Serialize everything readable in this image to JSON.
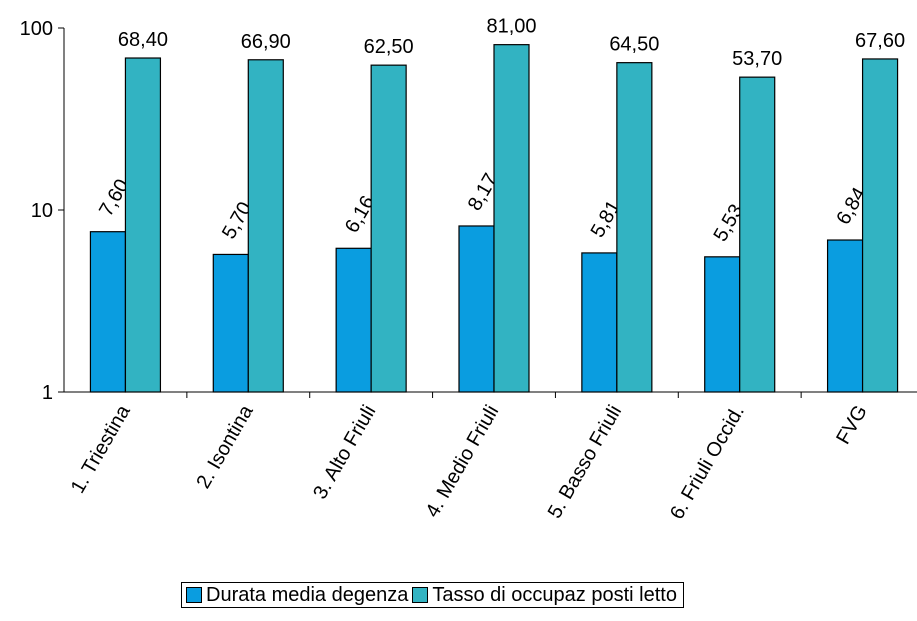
{
  "colors": {
    "series1": "#0a9de0",
    "series2": "#32b3c2"
  },
  "chart_data": {
    "type": "bar",
    "yscale": "log",
    "ylim": [
      1,
      100
    ],
    "yticks": [
      "1",
      "10",
      "100"
    ],
    "grid": false,
    "legend_position": "bottom",
    "categories": [
      "1.  Triestina",
      "2.  Isontina",
      "3.  Alto Friuli",
      "4.  Medio Friuli",
      "5.  Basso Friuli",
      "6.  Friuli Occid.",
      "FVG"
    ],
    "series": [
      {
        "name": "Durata media degenza",
        "values": [
          7.6,
          5.7,
          6.16,
          8.17,
          5.81,
          5.53,
          6.84
        ],
        "labels": [
          "7,60",
          "5,70",
          "6,16",
          "8,17",
          "5,81",
          "5,53",
          "6,84"
        ]
      },
      {
        "name": "Tasso di occupaz posti letto",
        "values": [
          68.4,
          66.9,
          62.5,
          81.0,
          64.5,
          53.7,
          67.6
        ],
        "labels": [
          "68,40",
          "66,90",
          "62,50",
          "81,00",
          "64,50",
          "53,70",
          "67,60"
        ]
      }
    ]
  }
}
